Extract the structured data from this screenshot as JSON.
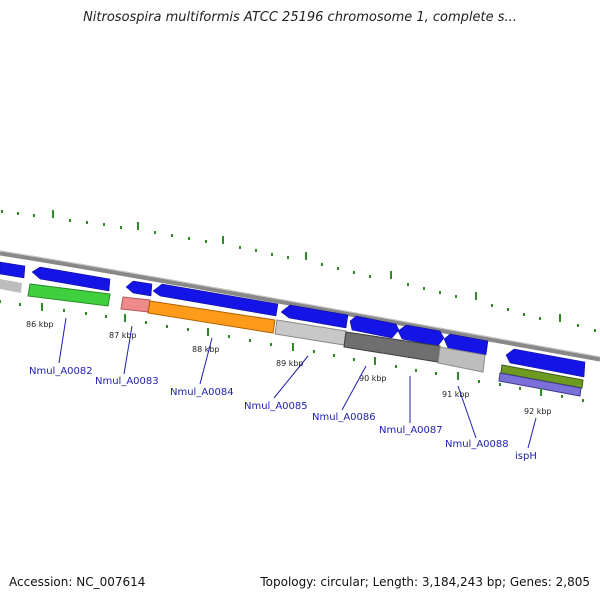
{
  "title": "Nitrosospira multiformis ATCC 25196 chromosome 1, complete s...",
  "footer": {
    "accession": "Accession: NC_007614",
    "summary": "Topology: circular; Length: 3,184,243 bp; Genes: 2,805"
  },
  "kbp_labels": [
    "86 kbp",
    "87 kbp",
    "88 kbp",
    "89 kbp",
    "90 kbp",
    "91 kbp",
    "92 kbp"
  ],
  "gene_labels": [
    "Nmul_A0082",
    "Nmul_A0083",
    "Nmul_A0084",
    "Nmul_A0085",
    "Nmul_A0086",
    "Nmul_A0087",
    "Nmul_A0088",
    "ispH"
  ],
  "colors": {
    "backbone": "#8a8a8a",
    "cds": "#1414e6",
    "tick": "#2e8b22",
    "label": "#1f1fae",
    "green_band": "#3fcf3f",
    "orange_band": "#ff9a1a",
    "pink_band": "#ee8a8a",
    "grey_band": "#bdbdbd",
    "dark_band": "#6f6f6f",
    "olive_band": "#6f9a22",
    "violet_band": "#7a70d8"
  }
}
